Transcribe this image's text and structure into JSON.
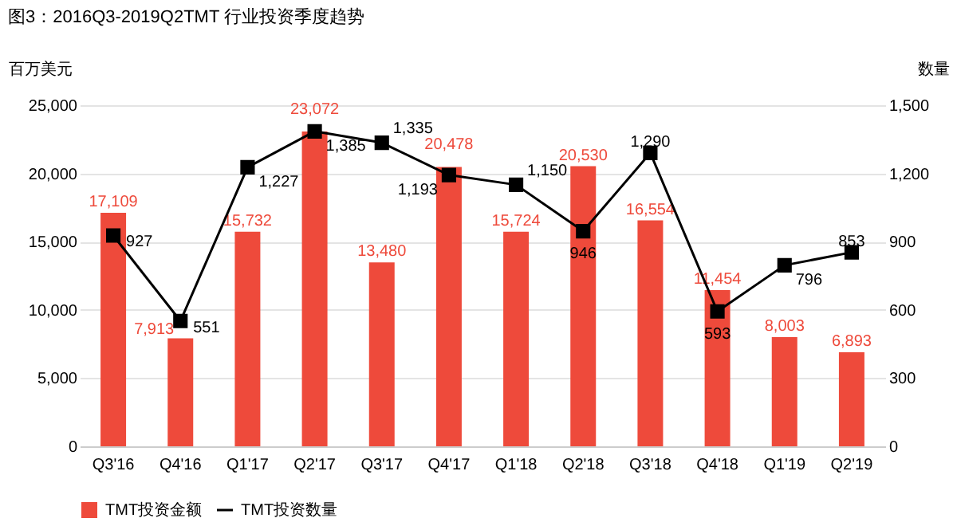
{
  "chart_data": {
    "type": "bar",
    "title": "图3：2016Q3-2019Q2TMT 行业投资季度趋势",
    "ylabel": "百万美元",
    "y2label": "数量",
    "categories": [
      "Q3'16",
      "Q4'16",
      "Q1'17",
      "Q2'17",
      "Q3'17",
      "Q4'17",
      "Q1'18",
      "Q2'18",
      "Q3'18",
      "Q4'18",
      "Q1'19",
      "Q2'19"
    ],
    "series": [
      {
        "name": "TMT投资金额",
        "color": "#ee4a3b",
        "values": [
          17109,
          7913,
          15732,
          23072,
          13480,
          20478,
          15724,
          20530,
          16554,
          11454,
          8003,
          6893
        ],
        "value_labels": [
          "17,109",
          "7,913",
          "15,732",
          "23,072",
          "13,480",
          "20,478",
          "15,724",
          "20,530",
          "16,554",
          "11,454",
          "8,003",
          "6,893"
        ]
      },
      {
        "name": "TMT投资数量",
        "type": "line",
        "axis": "y2",
        "color": "#000000",
        "marker": "square",
        "values": [
          927,
          551,
          1227,
          1385,
          1335,
          1193,
          1150,
          946,
          1290,
          593,
          796,
          853
        ],
        "value_labels": [
          "927",
          "551",
          "1,227",
          "1,385",
          "1,335",
          "1,193",
          "1,150",
          "946",
          "1,290",
          "593",
          "796",
          "853"
        ]
      }
    ],
    "ylim": [
      0,
      25000
    ],
    "yticks": [
      0,
      {
        "value": 5000,
        "label": "5,000"
      },
      {
        "value": 10000,
        "label": "10,000"
      },
      {
        "value": 15000,
        "label": "15,000"
      },
      {
        "value": 20000,
        "label": "20,000"
      },
      {
        "value": 25000,
        "label": "25,000"
      }
    ],
    "y2lim": [
      0,
      1500
    ],
    "y2ticks": [
      0,
      300,
      600,
      900,
      {
        "value": 1200,
        "label": "1,200"
      },
      {
        "value": 1500,
        "label": "1,500"
      }
    ],
    "grid": "y",
    "legend": "bottom"
  }
}
